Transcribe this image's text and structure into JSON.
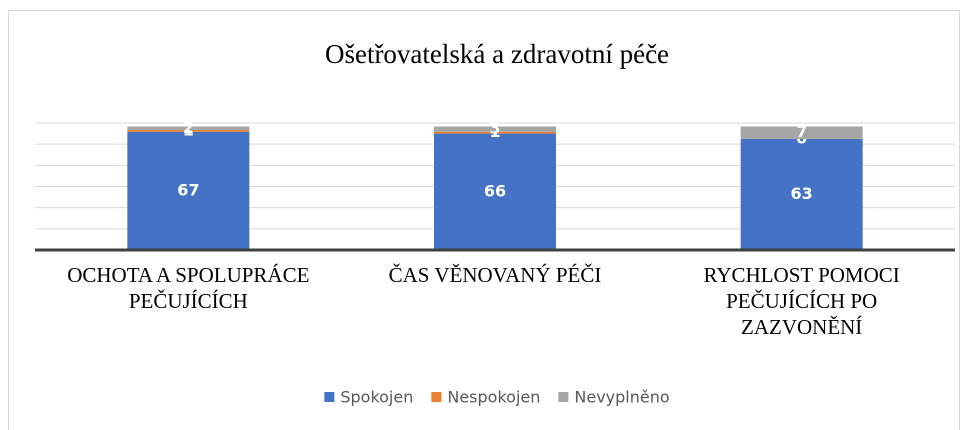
{
  "chart_data": {
    "type": "stacked_bar",
    "title": "Ošetřovatelská a zdravotní péče",
    "categories": [
      "OCHOTA A SPOLUPRÁCE PEČUJÍCÍCH",
      "ČAS VĚNOVANÝ PÉČI",
      "RYCHLOST POMOCI PEČUJÍCÍCH PO ZAZVONĚNÍ"
    ],
    "series": [
      {
        "name": "Spokojen",
        "color": "#4472c4",
        "values": [
          67,
          66,
          63
        ]
      },
      {
        "name": "Nespokojen",
        "color": "#ed7d31",
        "values": [
          1,
          1,
          0
        ]
      },
      {
        "name": "Nevyplněno",
        "color": "#a5a5a5",
        "values": [
          2,
          3,
          7
        ]
      }
    ],
    "ylim": [
      0,
      72
    ],
    "yticks": [
      0,
      12,
      24,
      36,
      48,
      60,
      72
    ],
    "grid": true,
    "legend": "bottom"
  }
}
